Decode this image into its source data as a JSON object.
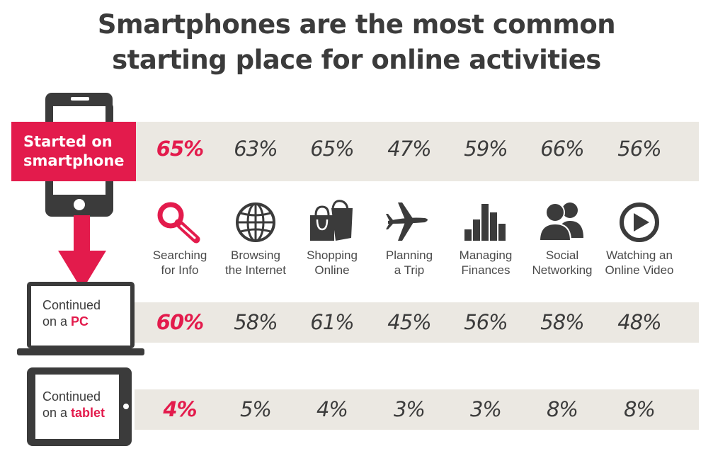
{
  "title_line1": "Smartphones are the most common",
  "title_line2": "starting place for online activities",
  "accent_color": "#e31b4c",
  "devices": {
    "smartphone": {
      "label": "Started on smartphone",
      "line1": "Started on",
      "line2": "smartphone"
    },
    "pc": {
      "line1": "Continued",
      "line2_prefix": "on a ",
      "line2_bold": "PC"
    },
    "tablet": {
      "line1": "Continued",
      "line2_prefix": "on a ",
      "line2_bold": "tablet"
    }
  },
  "chart_data": {
    "type": "table",
    "title": "Smartphones are the most common starting place for online activities",
    "categories": [
      {
        "line1": "Searching",
        "line2": "for Info",
        "icon": "magnifier-icon"
      },
      {
        "line1": "Browsing",
        "line2": "the Internet",
        "icon": "globe-icon"
      },
      {
        "line1": "Shopping",
        "line2": "Online",
        "icon": "shopping-bag-icon"
      },
      {
        "line1": "Planning",
        "line2": "a Trip",
        "icon": "airplane-icon"
      },
      {
        "line1": "Managing",
        "line2": "Finances",
        "icon": "bar-chart-icon"
      },
      {
        "line1": "Social",
        "line2": "Networking",
        "icon": "people-icon"
      },
      {
        "line1": "Watching an",
        "line2": "Online Video",
        "icon": "play-icon"
      }
    ],
    "series": [
      {
        "name": "Started on smartphone",
        "values": [
          65,
          63,
          65,
          47,
          59,
          66,
          56
        ],
        "display": [
          "65%",
          "63%",
          "65%",
          "47%",
          "59%",
          "66%",
          "56%"
        ]
      },
      {
        "name": "Continued on a PC",
        "values": [
          60,
          58,
          61,
          45,
          56,
          58,
          48
        ],
        "display": [
          "60%",
          "58%",
          "61%",
          "45%",
          "56%",
          "58%",
          "48%"
        ]
      },
      {
        "name": "Continued on a tablet",
        "values": [
          4,
          5,
          4,
          3,
          3,
          8,
          8
        ],
        "display": [
          "4%",
          "5%",
          "4%",
          "3%",
          "3%",
          "8%",
          "8%"
        ]
      }
    ]
  }
}
